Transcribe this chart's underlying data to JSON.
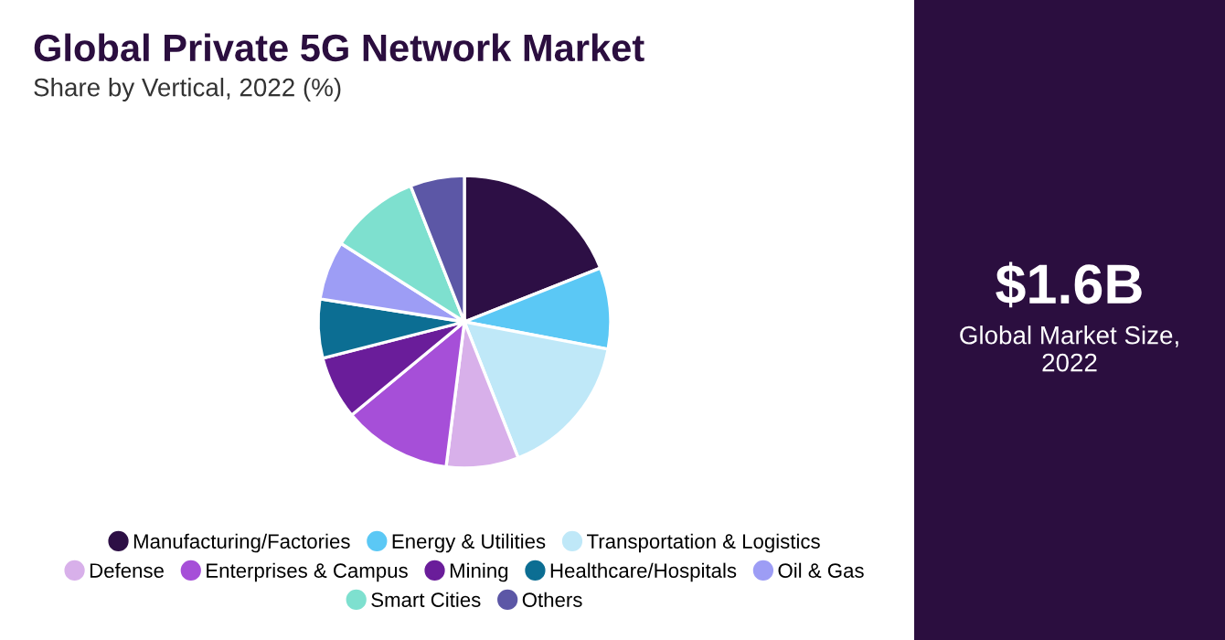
{
  "chart_data": [
    {
      "type": "pie",
      "title": "Global Private 5G Network Market",
      "subtitle": "Share by Vertical, 2022 (%)",
      "categories": [
        "Manufacturing/Factories",
        "Energy & Utilities",
        "Transportation & Logistics",
        "Defense",
        "Enterprises & Campus",
        "Mining",
        "Healthcare/Hospitals",
        "Oil & Gas",
        "Smart Cities",
        "Others"
      ],
      "values": [
        19,
        9,
        16,
        8,
        12,
        7,
        6.5,
        6.5,
        10,
        6
      ],
      "colors": [
        "#2d0f45",
        "#5bc8f5",
        "#bfe8f8",
        "#d8b0ea",
        "#a64fd8",
        "#6a1d9a",
        "#0c6e93",
        "#9d9df5",
        "#7ee0cf",
        "#5c57a6"
      ],
      "legend": "bottom"
    },
    {
      "type": "other",
      "title": "$1.6B",
      "subtitle": "Global Market Size, 2022"
    }
  ]
}
